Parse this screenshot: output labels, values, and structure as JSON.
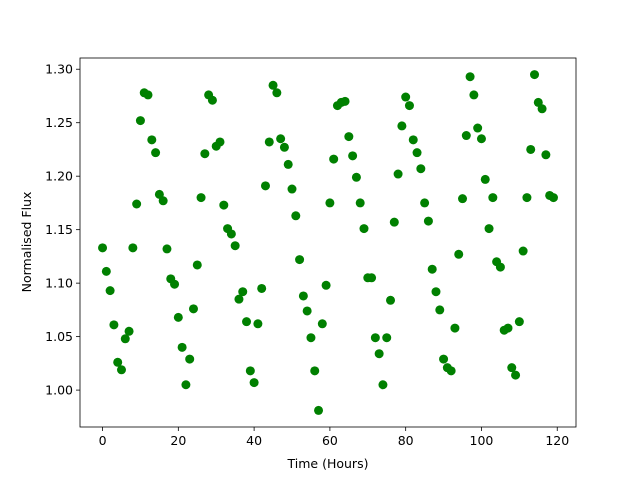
{
  "chart_data": {
    "type": "scatter",
    "xlabel": "Time (Hours)",
    "ylabel": "Normalised Flux",
    "color": "green",
    "x": [
      0,
      1,
      2,
      3,
      4,
      5,
      6,
      7,
      8,
      9,
      10,
      11,
      12,
      13,
      14,
      15,
      16,
      17,
      18,
      19,
      20,
      21,
      22,
      23,
      24,
      25,
      26,
      27,
      28,
      29,
      30,
      31,
      32,
      33,
      34,
      35,
      36,
      37,
      38,
      39,
      40,
      41,
      42,
      43,
      44,
      45,
      46,
      47,
      48,
      49,
      50,
      51,
      52,
      53,
      54,
      55,
      56,
      57,
      58,
      59,
      60,
      61,
      62,
      63,
      64,
      65,
      66,
      67,
      68,
      69,
      70,
      71,
      72,
      73,
      74,
      75,
      76,
      77,
      78,
      79,
      80,
      81,
      82,
      83,
      84,
      85,
      86,
      87,
      88,
      89,
      90,
      91,
      92,
      93,
      94,
      95,
      96,
      97,
      98,
      99,
      100,
      101,
      102,
      103,
      104,
      105,
      106,
      107,
      108,
      109,
      110,
      111,
      112,
      113,
      114,
      115,
      116,
      117,
      118,
      119
    ],
    "values": [
      1.133,
      1.111,
      1.093,
      1.061,
      1.026,
      1.019,
      1.048,
      1.055,
      1.133,
      1.174,
      1.252,
      1.278,
      1.276,
      1.234,
      1.222,
      1.183,
      1.177,
      1.132,
      1.104,
      1.099,
      1.068,
      1.04,
      1.005,
      1.029,
      1.076,
      1.117,
      1.18,
      1.221,
      1.276,
      1.271,
      1.228,
      1.232,
      1.173,
      1.151,
      1.146,
      1.135,
      1.085,
      1.092,
      1.064,
      1.018,
      1.007,
      1.062,
      1.095,
      1.191,
      1.232,
      1.285,
      1.278,
      1.235,
      1.227,
      1.211,
      1.188,
      1.163,
      1.122,
      1.088,
      1.074,
      1.049,
      1.018,
      0.981,
      1.062,
      1.098,
      1.175,
      1.216,
      1.266,
      1.269,
      1.27,
      1.237,
      1.219,
      1.199,
      1.175,
      1.151,
      1.105,
      1.105,
      1.049,
      1.034,
      1.005,
      1.049,
      1.084,
      1.157,
      1.202,
      1.247,
      1.274,
      1.266,
      1.234,
      1.222,
      1.207,
      1.175,
      1.158,
      1.113,
      1.092,
      1.075,
      1.029,
      1.021,
      1.018,
      1.058,
      1.127,
      1.179,
      1.238,
      1.293,
      1.276,
      1.245,
      1.235,
      1.197,
      1.151,
      1.18,
      1.12,
      1.115,
      1.056,
      1.058,
      1.021,
      1.014,
      1.064,
      1.13,
      1.18,
      1.225,
      1.295,
      1.269,
      1.263,
      1.22,
      1.182,
      1.18
    ],
    "xlim": [
      -5.95,
      124.95
    ],
    "ylim": [
      0.9655,
      1.3105
    ],
    "xticks": [
      0,
      20,
      40,
      60,
      80,
      100,
      120
    ],
    "yticks": [
      {
        "value": 1.0,
        "label": "1.00"
      },
      {
        "value": 1.05,
        "label": "1.05"
      },
      {
        "value": 1.1,
        "label": "1.10"
      },
      {
        "value": 1.15,
        "label": "1.15"
      },
      {
        "value": 1.2,
        "label": "1.20"
      },
      {
        "value": 1.25,
        "label": "1.25"
      },
      {
        "value": 1.3,
        "label": "1.30"
      }
    ]
  }
}
